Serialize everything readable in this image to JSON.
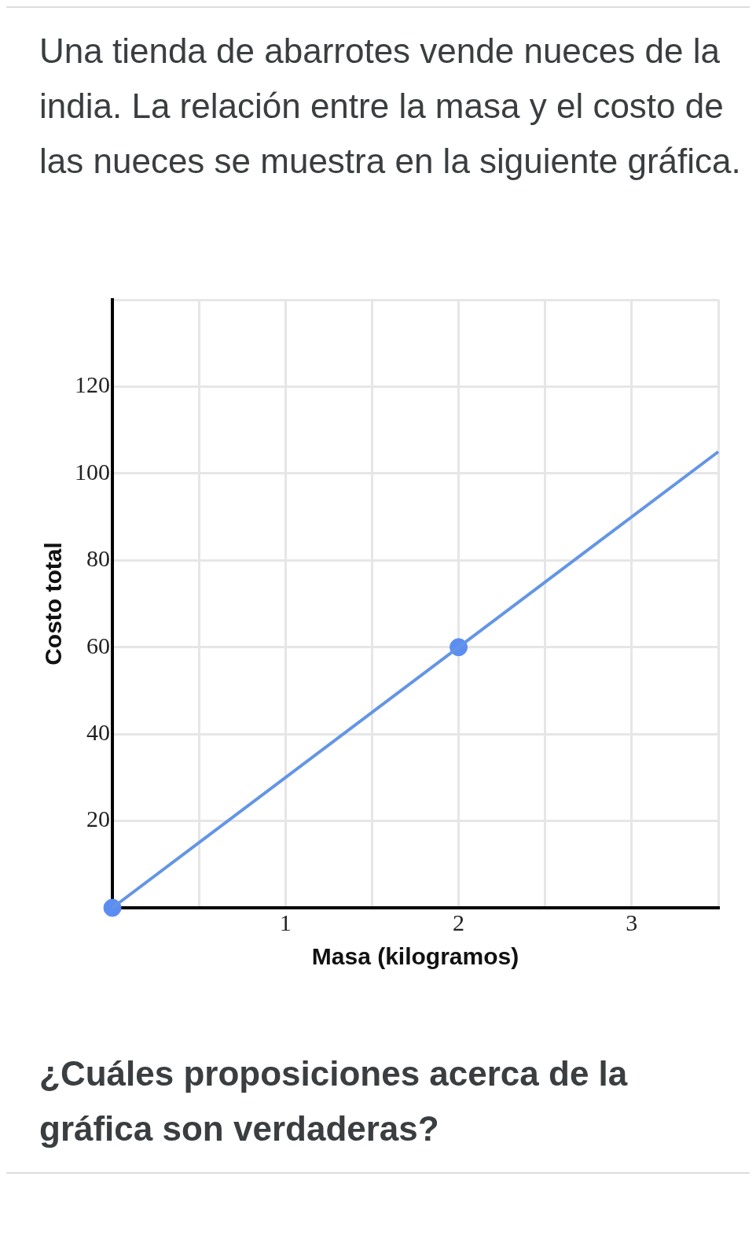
{
  "chart_data": {
    "type": "line",
    "title": "Una tienda de abarrotes vende nueces de la india. La relación entre la masa y el costo de las nueces se muestra en la siguiente gráfica.",
    "xlabel": "Masa (kilogramos)",
    "ylabel": "Costo total",
    "xlim": [
      0,
      3.5
    ],
    "ylim": [
      0,
      140
    ],
    "xticks": [
      {
        "value": 0.5,
        "label": null
      },
      1,
      {
        "value": 1.5,
        "label": null
      },
      2,
      {
        "value": 2.5,
        "label": null
      },
      3,
      {
        "value": 3.5,
        "label": null
      }
    ],
    "yticks": [
      20,
      40,
      60,
      80,
      100,
      120,
      {
        "value": 140,
        "label": null
      }
    ],
    "grid": true,
    "legend": false,
    "series": [
      {
        "type": "line",
        "color": "#6495e5",
        "x": [
          0,
          3.5
        ],
        "values": [
          0,
          105
        ],
        "marker": "none"
      },
      {
        "type": "scatter",
        "color": "#5b8ef0",
        "x": [
          0,
          2
        ],
        "values": [
          0,
          60
        ],
        "marker": "circle"
      }
    ],
    "annotations": [
      "¿Cuáles proposiciones acerca de la gráfica son verdaderas?"
    ]
  }
}
